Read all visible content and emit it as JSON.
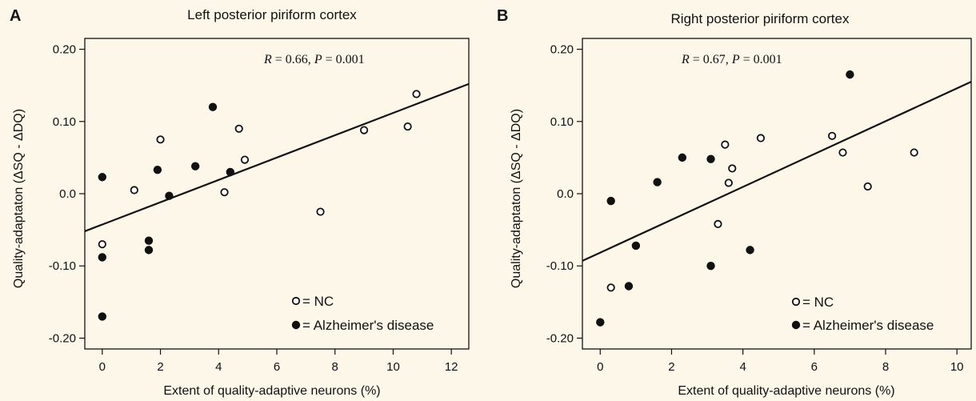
{
  "background": "#fdf7ea",
  "colors": {
    "ink": "#111111",
    "open_marker_fill": "#ffffff",
    "filled_marker_fill": "#111111"
  },
  "legend": {
    "nc": "= NC",
    "ad": "= Alzheimer's disease"
  },
  "chart_data": [
    {
      "type": "scatter",
      "panel": "A",
      "title": "Left posterior piriform cortex",
      "xlabel": "Extent of quality-adaptive neurons (%)",
      "ylabel": "Quality-adaptaton (ΔSQ - ΔDQ)",
      "xlim": [
        -0.6,
        12.6
      ],
      "ylim": [
        -0.215,
        0.215
      ],
      "xticks": [
        0,
        2,
        4,
        6,
        8,
        10,
        12
      ],
      "xtick_labels": [
        "0",
        "2",
        "4",
        "6",
        "8",
        "10",
        "12"
      ],
      "yticks": [
        0.2,
        0.1,
        0.0,
        -0.1,
        -0.2
      ],
      "ytick_labels": [
        "0.20",
        "0.10",
        "0.0",
        "-0.10",
        "-0.20"
      ],
      "grid": false,
      "legend_position": "bottom-right",
      "annotation": {
        "parts": [
          "R",
          " = 0.66, ",
          "P",
          " = 0.001"
        ]
      },
      "regression": {
        "x": [
          -0.6,
          12.6
        ],
        "y": [
          -0.052,
          0.152
        ]
      },
      "series": [
        {
          "name": "NC",
          "marker": "open",
          "points": [
            [
              0.0,
              -0.07
            ],
            [
              1.1,
              0.005
            ],
            [
              2.0,
              0.075
            ],
            [
              4.2,
              0.002
            ],
            [
              4.7,
              0.09
            ],
            [
              4.9,
              0.047
            ],
            [
              7.5,
              -0.025
            ],
            [
              9.0,
              0.088
            ],
            [
              10.5,
              0.093
            ],
            [
              10.8,
              0.138
            ]
          ]
        },
        {
          "name": "Alzheimer's disease",
          "marker": "filled",
          "points": [
            [
              0.0,
              0.023
            ],
            [
              0.0,
              -0.088
            ],
            [
              0.0,
              -0.17
            ],
            [
              1.6,
              -0.065
            ],
            [
              1.6,
              -0.078
            ],
            [
              1.9,
              0.033
            ],
            [
              2.3,
              -0.003
            ],
            [
              3.2,
              0.038
            ],
            [
              3.8,
              0.12
            ],
            [
              4.4,
              0.03
            ]
          ]
        }
      ]
    },
    {
      "type": "scatter",
      "panel": "B",
      "title": "Right posterior piriform cortex",
      "xlabel": "Extent of quality-adaptive neurons (%)",
      "ylabel": "Quality-adaptaton (ΔSQ - ΔDQ)",
      "xlim": [
        -0.5,
        10.4
      ],
      "ylim": [
        -0.215,
        0.215
      ],
      "xticks": [
        0,
        2,
        4,
        6,
        8,
        10
      ],
      "xtick_labels": [
        "0",
        "2",
        "4",
        "6",
        "8",
        "10"
      ],
      "yticks": [
        0.2,
        0.1,
        0.0,
        -0.1,
        -0.2
      ],
      "ytick_labels": [
        "0.20",
        "0.10",
        "0.0",
        "-0.10",
        "-0.20"
      ],
      "grid": false,
      "legend_position": "bottom-right",
      "annotation": {
        "parts": [
          "R",
          " = 0.67, ",
          "P",
          " = 0.001"
        ]
      },
      "regression": {
        "x": [
          -0.5,
          10.4
        ],
        "y": [
          -0.093,
          0.155
        ]
      },
      "series": [
        {
          "name": "NC",
          "marker": "open",
          "points": [
            [
              0.3,
              -0.13
            ],
            [
              3.3,
              -0.042
            ],
            [
              3.5,
              0.068
            ],
            [
              3.6,
              0.015
            ],
            [
              3.7,
              0.035
            ],
            [
              4.5,
              0.077
            ],
            [
              6.5,
              0.08
            ],
            [
              6.8,
              0.057
            ],
            [
              7.5,
              0.01
            ],
            [
              8.8,
              0.057
            ]
          ]
        },
        {
          "name": "Alzheimer's disease",
          "marker": "filled",
          "points": [
            [
              0.0,
              -0.178
            ],
            [
              0.3,
              -0.01
            ],
            [
              0.8,
              -0.128
            ],
            [
              1.0,
              -0.072
            ],
            [
              1.6,
              0.016
            ],
            [
              2.3,
              0.05
            ],
            [
              3.1,
              0.048
            ],
            [
              3.1,
              -0.1
            ],
            [
              4.2,
              -0.078
            ],
            [
              7.0,
              0.165
            ]
          ]
        }
      ]
    }
  ]
}
